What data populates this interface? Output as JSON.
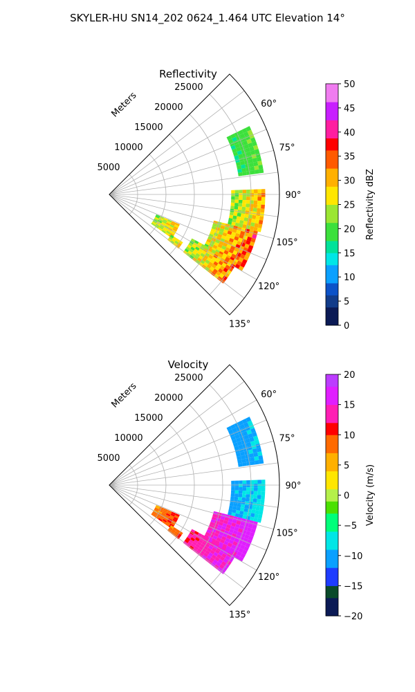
{
  "figure": {
    "suptitle": "SKYLER-HU  SN14_202  0624_1.464 UTC Elevation 14°"
  },
  "chart_data": [
    {
      "type": "heatmap",
      "title": "Reflectivity",
      "projection": "polar sector",
      "radial_label": "Meters",
      "radial_ticks": [
        "5000",
        "10000",
        "15000",
        "20000",
        "25000"
      ],
      "rmax": 30000,
      "azimuth_ticks": [
        "60°",
        "75°",
        "90°",
        "105°",
        "120°",
        "135°"
      ],
      "azimuth_range": [
        45,
        135
      ],
      "grid": true,
      "colorbar": {
        "label": "Reflectivity dBZ",
        "range": [
          0,
          50
        ],
        "ticks": [
          "0",
          "5",
          "10",
          "15",
          "20",
          "25",
          "30",
          "35",
          "40",
          "45",
          "50"
        ]
      },
      "echo_regions": [
        {
          "az_range": [
            64,
            82
          ],
          "range_m": [
            23000,
            27500
          ],
          "value_range": [
            17,
            22
          ]
        },
        {
          "az_range": [
            88,
            104
          ],
          "range_m": [
            21500,
            27500
          ],
          "value_range": [
            18,
            35
          ]
        },
        {
          "az_range": [
            104,
            120
          ],
          "range_m": [
            19000,
            27000
          ],
          "value_range": [
            20,
            40
          ]
        },
        {
          "az_range": [
            118,
            128
          ],
          "range_m": [
            16500,
            25500
          ],
          "value_range": [
            18,
            38
          ]
        },
        {
          "az_range": [
            113,
            125
          ],
          "range_m": [
            9000,
            13500
          ],
          "value_range": [
            18,
            33
          ]
        },
        {
          "az_range": [
            123,
            128
          ],
          "range_m": [
            13000,
            15500
          ],
          "value_range": [
            18,
            33
          ]
        }
      ]
    },
    {
      "type": "heatmap",
      "title": "Velocity",
      "projection": "polar sector",
      "radial_label": "Meters",
      "radial_ticks": [
        "5000",
        "10000",
        "15000",
        "20000",
        "25000"
      ],
      "rmax": 30000,
      "azimuth_ticks": [
        "60°",
        "75°",
        "90°",
        "105°",
        "120°",
        "135°"
      ],
      "azimuth_range": [
        45,
        135
      ],
      "grid": true,
      "colorbar": {
        "label": "Velocity (m/s)",
        "range": [
          -20,
          20
        ],
        "ticks": [
          "−20",
          "−15",
          "−10",
          "−5",
          "0",
          "5",
          "10",
          "15",
          "20"
        ]
      },
      "echo_regions": [
        {
          "az_range": [
            64,
            82
          ],
          "range_m": [
            23000,
            27500
          ],
          "value_range": [
            -12,
            -8
          ]
        },
        {
          "az_range": [
            88,
            104
          ],
          "range_m": [
            21500,
            27500
          ],
          "value_range": [
            -12,
            -6
          ]
        },
        {
          "az_range": [
            104,
            120
          ],
          "range_m": [
            19000,
            27000
          ],
          "value_range": [
            13,
            18
          ]
        },
        {
          "az_range": [
            118,
            128
          ],
          "range_m": [
            16500,
            25500
          ],
          "value_range": [
            11,
            17
          ]
        },
        {
          "az_range": [
            113,
            125
          ],
          "range_m": [
            9000,
            13500
          ],
          "value_range": [
            6,
            12
          ]
        },
        {
          "az_range": [
            123,
            128
          ],
          "range_m": [
            13000,
            15500
          ],
          "value_range": [
            6,
            12
          ]
        }
      ]
    }
  ]
}
